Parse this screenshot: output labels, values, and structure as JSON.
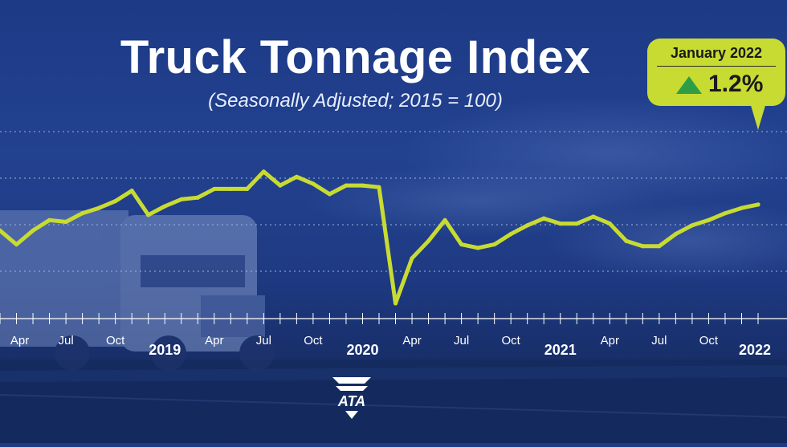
{
  "title": "Truck Tonnage Index",
  "subtitle": "(Seasonally Adjusted; 2015 = 100)",
  "callout": {
    "label": "January 2022",
    "value": "1.2%",
    "direction_icon": "up-triangle-icon"
  },
  "logo": {
    "text": "ATA"
  },
  "colors": {
    "line": "#c8db32",
    "callout_bg": "#c8db32",
    "arrow": "#2e9e46",
    "text": "#ffffff"
  },
  "chart_data": {
    "type": "line",
    "title": "Truck Tonnage Index",
    "subtitle": "(Seasonally Adjusted; 2015 = 100)",
    "xlabel": "",
    "ylabel": "",
    "grid": true,
    "y_tick_labels_shown": false,
    "gridline_count": 4,
    "ylim": [
      0,
      10
    ],
    "x": [
      "2018-03",
      "2018-04",
      "2018-05",
      "2018-06",
      "2018-07",
      "2018-08",
      "2018-09",
      "2018-10",
      "2018-11",
      "2018-12",
      "2019-01",
      "2019-02",
      "2019-03",
      "2019-04",
      "2019-05",
      "2019-06",
      "2019-07",
      "2019-08",
      "2019-09",
      "2019-10",
      "2019-11",
      "2019-12",
      "2020-01",
      "2020-02",
      "2020-03",
      "2020-04",
      "2020-05",
      "2020-06",
      "2020-07",
      "2020-08",
      "2020-09",
      "2020-10",
      "2020-11",
      "2020-12",
      "2021-01",
      "2021-02",
      "2021-03",
      "2021-04",
      "2021-05",
      "2021-06",
      "2021-07",
      "2021-08",
      "2021-09",
      "2021-10",
      "2021-11",
      "2021-12",
      "2022-01"
    ],
    "series": [
      {
        "values": [
          4.2,
          3.4,
          4.2,
          4.8,
          4.7,
          5.2,
          5.5,
          5.9,
          6.5,
          5.1,
          5.6,
          6.0,
          6.1,
          6.6,
          6.6,
          6.6,
          7.6,
          6.8,
          7.3,
          6.9,
          6.3,
          6.8,
          6.8,
          6.7,
          0.0,
          2.6,
          3.6,
          4.8,
          3.4,
          3.2,
          3.4,
          4.0,
          4.5,
          4.9,
          4.6,
          4.6,
          5.0,
          4.6,
          3.6,
          3.3,
          3.3,
          4.0,
          4.5,
          4.8,
          5.2,
          5.5,
          5.7
        ]
      }
    ],
    "tick_labels": [
      {
        "label": "Apr",
        "x": "2018-04"
      },
      {
        "label": "Jul",
        "x": "2018-07"
      },
      {
        "label": "Oct",
        "x": "2018-10"
      },
      {
        "label": "Apr",
        "x": "2019-04"
      },
      {
        "label": "Jul",
        "x": "2019-07"
      },
      {
        "label": "Oct",
        "x": "2019-10"
      },
      {
        "label": "Apr",
        "x": "2020-04"
      },
      {
        "label": "Jul",
        "x": "2020-07"
      },
      {
        "label": "Oct",
        "x": "2020-10"
      },
      {
        "label": "Apr",
        "x": "2021-04"
      },
      {
        "label": "Jul",
        "x": "2021-07"
      },
      {
        "label": "Oct",
        "x": "2021-10"
      }
    ],
    "year_labels": [
      {
        "label": "2019",
        "x": "2019-01"
      },
      {
        "label": "2020",
        "x": "2020-01"
      },
      {
        "label": "2021",
        "x": "2021-01"
      },
      {
        "label": "2022",
        "x": "2022-01"
      }
    ]
  }
}
